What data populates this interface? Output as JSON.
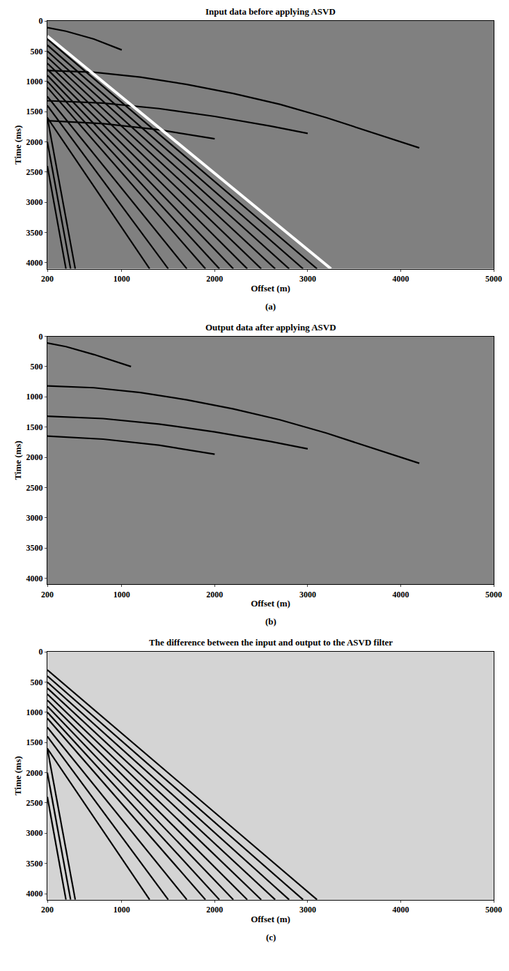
{
  "chart_data": [
    {
      "type": "line",
      "title": "Input data before applying ASVD",
      "x_label": "Offset (m)",
      "y_label": "Time (ms)",
      "label": "(a)",
      "xlim": [
        200,
        5000
      ],
      "xticks": [
        200,
        1000,
        2000,
        3000,
        4000,
        5000
      ],
      "ylim": [
        4100,
        0
      ],
      "yticks": [
        0,
        500,
        1000,
        1500,
        2000,
        2500,
        3000,
        3500,
        4000
      ],
      "series": [
        {
          "color": "#000000",
          "x": [
            200,
            400,
            700,
            1000
          ],
          "values": [
            110,
            170,
            300,
            480
          ]
        },
        {
          "color": "#000000",
          "x": [
            200,
            700,
            1200,
            1700,
            2200,
            2700,
            3200,
            3700,
            4200
          ],
          "values": [
            820,
            850,
            930,
            1050,
            1200,
            1380,
            1600,
            1850,
            2100
          ]
        },
        {
          "color": "#000000",
          "x": [
            200,
            800,
            1400,
            2000,
            2600,
            3000
          ],
          "values": [
            1320,
            1360,
            1450,
            1580,
            1740,
            1860
          ]
        },
        {
          "color": "#000000",
          "x": [
            200,
            800,
            1400,
            2000
          ],
          "values": [
            1650,
            1700,
            1800,
            1950
          ]
        },
        {
          "color": "#000000",
          "x": [
            200,
            3100
          ],
          "values": [
            300,
            4100
          ]
        },
        {
          "color": "#000000",
          "x": [
            200,
            2950
          ],
          "values": [
            400,
            4100
          ]
        },
        {
          "color": "#000000",
          "x": [
            200,
            2800
          ],
          "values": [
            500,
            4100
          ]
        },
        {
          "color": "#000000",
          "x": [
            200,
            2650
          ],
          "values": [
            600,
            4100
          ]
        },
        {
          "color": "#000000",
          "x": [
            200,
            2500
          ],
          "values": [
            700,
            4100
          ]
        },
        {
          "color": "#000000",
          "x": [
            200,
            2350
          ],
          "values": [
            800,
            4100
          ]
        },
        {
          "color": "#000000",
          "x": [
            200,
            2200
          ],
          "values": [
            900,
            4100
          ]
        },
        {
          "color": "#000000",
          "x": [
            200,
            2050
          ],
          "values": [
            1000,
            4100
          ]
        },
        {
          "color": "#000000",
          "x": [
            200,
            1900
          ],
          "values": [
            1100,
            4100
          ]
        },
        {
          "color": "#000000",
          "x": [
            200,
            1700
          ],
          "values": [
            1250,
            4100
          ]
        },
        {
          "color": "#000000",
          "x": [
            200,
            1500
          ],
          "values": [
            1400,
            4100
          ]
        },
        {
          "color": "#000000",
          "x": [
            200,
            1300
          ],
          "values": [
            1600,
            4100
          ]
        },
        {
          "color": "#000000",
          "x": [
            200,
            500
          ],
          "values": [
            1600,
            4100
          ]
        },
        {
          "color": "#000000",
          "x": [
            200,
            450
          ],
          "values": [
            2000,
            4100
          ]
        },
        {
          "color": "#000000",
          "x": [
            200,
            400
          ],
          "values": [
            2400,
            4100
          ]
        },
        {
          "color": "#ffffff",
          "x": [
            200,
            3250
          ],
          "values": [
            250,
            4100
          ]
        }
      ]
    },
    {
      "type": "line",
      "title": "Output data after applying ASVD",
      "x_label": "Offset (m)",
      "y_label": "Time (ms)",
      "label": "(b)",
      "xlim": [
        200,
        5000
      ],
      "xticks": [
        200,
        1000,
        2000,
        3000,
        4000,
        5000
      ],
      "ylim": [
        4100,
        0
      ],
      "yticks": [
        0,
        500,
        1000,
        1500,
        2000,
        2500,
        3000,
        3500,
        4000
      ],
      "series": [
        {
          "color": "#000000",
          "x": [
            200,
            400,
            700,
            1100
          ],
          "values": [
            110,
            170,
            300,
            500
          ]
        },
        {
          "color": "#000000",
          "x": [
            200,
            700,
            1200,
            1700,
            2200,
            2700,
            3200,
            3700,
            4200
          ],
          "values": [
            820,
            850,
            930,
            1050,
            1200,
            1380,
            1600,
            1850,
            2100
          ]
        },
        {
          "color": "#000000",
          "x": [
            200,
            800,
            1400,
            2000,
            2600,
            3000
          ],
          "values": [
            1320,
            1360,
            1450,
            1580,
            1740,
            1860
          ]
        },
        {
          "color": "#000000",
          "x": [
            200,
            800,
            1400,
            2000
          ],
          "values": [
            1650,
            1700,
            1800,
            1950
          ]
        }
      ]
    },
    {
      "type": "line",
      "title": "The difference between the input and output to the ASVD filter",
      "x_label": "Offset (m)",
      "y_label": "Time (ms)",
      "label": "(c)",
      "xlim": [
        200,
        5000
      ],
      "xticks": [
        200,
        1000,
        2000,
        3000,
        4000,
        5000
      ],
      "ylim": [
        4100,
        0
      ],
      "yticks": [
        0,
        500,
        1000,
        1500,
        2000,
        2500,
        3000,
        3500,
        4000
      ],
      "series": [
        {
          "color": "#000000",
          "x": [
            200,
            3100
          ],
          "values": [
            300,
            4100
          ]
        },
        {
          "color": "#000000",
          "x": [
            200,
            2950
          ],
          "values": [
            400,
            4100
          ]
        },
        {
          "color": "#000000",
          "x": [
            200,
            2800
          ],
          "values": [
            500,
            4100
          ]
        },
        {
          "color": "#000000",
          "x": [
            200,
            2650
          ],
          "values": [
            600,
            4100
          ]
        },
        {
          "color": "#000000",
          "x": [
            200,
            2500
          ],
          "values": [
            700,
            4100
          ]
        },
        {
          "color": "#000000",
          "x": [
            200,
            2350
          ],
          "values": [
            800,
            4100
          ]
        },
        {
          "color": "#000000",
          "x": [
            200,
            2200
          ],
          "values": [
            900,
            4100
          ]
        },
        {
          "color": "#000000",
          "x": [
            200,
            2050
          ],
          "values": [
            1000,
            4100
          ]
        },
        {
          "color": "#000000",
          "x": [
            200,
            1900
          ],
          "values": [
            1100,
            4100
          ]
        },
        {
          "color": "#000000",
          "x": [
            200,
            1700
          ],
          "values": [
            1250,
            4100
          ]
        },
        {
          "color": "#000000",
          "x": [
            200,
            1500
          ],
          "values": [
            1400,
            4100
          ]
        },
        {
          "color": "#000000",
          "x": [
            200,
            1300
          ],
          "values": [
            1600,
            4100
          ]
        },
        {
          "color": "#000000",
          "x": [
            200,
            500
          ],
          "values": [
            1600,
            4100
          ]
        },
        {
          "color": "#000000",
          "x": [
            200,
            450
          ],
          "values": [
            2000,
            4100
          ]
        },
        {
          "color": "#000000",
          "x": [
            200,
            400
          ],
          "values": [
            2400,
            4100
          ]
        }
      ]
    }
  ]
}
